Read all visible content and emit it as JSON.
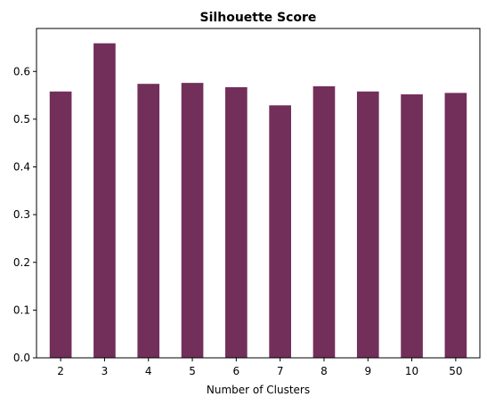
{
  "chart_data": {
    "type": "bar",
    "title": "Silhouette Score",
    "xlabel": "Number of Clusters",
    "ylabel": "",
    "categories": [
      "2",
      "3",
      "4",
      "5",
      "6",
      "7",
      "8",
      "9",
      "10",
      "50"
    ],
    "values": [
      0.558,
      0.659,
      0.574,
      0.576,
      0.567,
      0.529,
      0.569,
      0.558,
      0.552,
      0.555
    ],
    "ylim": [
      0,
      0.69
    ],
    "yticks": [
      0.0,
      0.1,
      0.2,
      0.3,
      0.4,
      0.5,
      0.6
    ],
    "ytick_labels": [
      "0.0",
      "0.1",
      "0.2",
      "0.3",
      "0.4",
      "0.5",
      "0.6"
    ],
    "bar_color": "#722f59",
    "grid": false,
    "legend": "none"
  }
}
